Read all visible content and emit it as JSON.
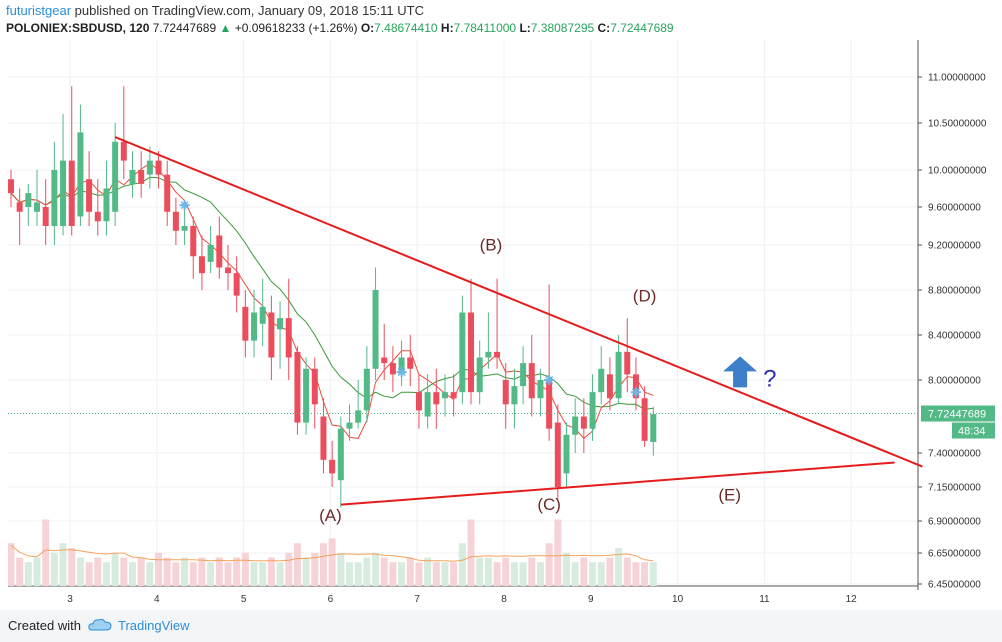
{
  "header": {
    "author": "futuristgear",
    "published": "published on TradingView.com, January 09, 2018 15:11 UTC",
    "symbol": "POLONIEX:SBDUSD, 120",
    "last": "7.72447689",
    "change_arrow": "▲",
    "change": "+0.09618233 (+1.26%)",
    "o_label": "O:",
    "o_value": "7.48674410",
    "h_label": "H:",
    "h_value": "7.78411000",
    "l_label": "L:",
    "l_value": "7.38087295",
    "c_label": "C:",
    "c_value": "7.72447689"
  },
  "footer": {
    "created_with": "Created with",
    "brand": "TradingView"
  },
  "colors": {
    "up": "#53b987",
    "down": "#eb4d5c",
    "trendline": "#e51c1c",
    "ma_fast": "#e84b3c",
    "ma_slow": "#3a9a3a",
    "ma_volume": "#f5a25a",
    "vol_up": "#d7ecdf",
    "vol_down": "#f6d3d6",
    "price_tag": "#53b987",
    "arrow": "#3d7fc9",
    "question": "#2f2fb0",
    "marker": "#6fb5e8"
  },
  "chart_data": {
    "type": "candlestick",
    "xlabel": "",
    "ylabel": "",
    "x_ticks": [
      "3",
      "4",
      "5",
      "6",
      "7",
      "8",
      "9",
      "10",
      "11",
      "12"
    ],
    "x_range": [
      2.28,
      12.82
    ],
    "y_ticks": [
      "11.00000000",
      "10.50000000",
      "10.00000000",
      "9.60000000",
      "9.20000000",
      "8.80000000",
      "8.40000000",
      "8.00000000",
      "7.40000000",
      "7.15000000",
      "6.90000000",
      "6.65000000",
      "6.45000000"
    ],
    "grid": true,
    "current_price": "7.72447689",
    "countdown": "48:34",
    "candles": [
      {
        "x": 2.32,
        "o": 9.9,
        "c": 9.75,
        "h": 10.0,
        "l": 9.6,
        "v": 0.45
      },
      {
        "x": 2.42,
        "o": 9.65,
        "c": 9.55,
        "h": 9.8,
        "l": 9.2,
        "v": 0.3
      },
      {
        "x": 2.52,
        "o": 9.6,
        "c": 9.75,
        "h": 9.85,
        "l": 9.4,
        "v": 0.25
      },
      {
        "x": 2.62,
        "o": 9.55,
        "c": 9.65,
        "h": 10.0,
        "l": 9.4,
        "v": 0.3
      },
      {
        "x": 2.72,
        "o": 9.6,
        "c": 9.4,
        "h": 9.9,
        "l": 9.2,
        "v": 0.7
      },
      {
        "x": 2.82,
        "o": 9.4,
        "c": 10.0,
        "h": 10.3,
        "l": 9.2,
        "v": 0.35
      },
      {
        "x": 2.92,
        "o": 9.4,
        "c": 10.1,
        "h": 10.6,
        "l": 9.3,
        "v": 0.45
      },
      {
        "x": 3.02,
        "o": 10.1,
        "c": 9.4,
        "h": 10.9,
        "l": 9.3,
        "v": 0.4
      },
      {
        "x": 3.12,
        "o": 9.5,
        "c": 10.4,
        "h": 10.7,
        "l": 9.4,
        "v": 0.3
      },
      {
        "x": 3.22,
        "o": 9.9,
        "c": 9.55,
        "h": 10.2,
        "l": 9.4,
        "v": 0.25
      },
      {
        "x": 3.32,
        "o": 9.55,
        "c": 9.45,
        "h": 9.9,
        "l": 9.3,
        "v": 0.3
      },
      {
        "x": 3.42,
        "o": 9.45,
        "c": 9.8,
        "h": 10.1,
        "l": 9.3,
        "v": 0.25
      },
      {
        "x": 3.52,
        "o": 9.55,
        "c": 10.3,
        "h": 10.5,
        "l": 9.4,
        "v": 0.35
      },
      {
        "x": 3.62,
        "o": 10.3,
        "c": 10.1,
        "h": 10.9,
        "l": 9.9,
        "v": 0.3
      },
      {
        "x": 3.72,
        "o": 9.85,
        "c": 10.0,
        "h": 10.2,
        "l": 9.7,
        "v": 0.25
      },
      {
        "x": 3.82,
        "o": 10.0,
        "c": 9.85,
        "h": 10.2,
        "l": 9.7,
        "v": 0.3
      },
      {
        "x": 3.92,
        "o": 9.95,
        "c": 10.1,
        "h": 10.25,
        "l": 9.8,
        "v": 0.25
      },
      {
        "x": 4.02,
        "o": 10.1,
        "c": 9.95,
        "h": 10.2,
        "l": 9.8,
        "v": 0.35
      },
      {
        "x": 4.12,
        "o": 9.95,
        "c": 9.55,
        "h": 10.1,
        "l": 9.4,
        "v": 0.3
      },
      {
        "x": 4.22,
        "o": 9.55,
        "c": 9.35,
        "h": 9.7,
        "l": 9.2,
        "v": 0.25
      },
      {
        "x": 4.32,
        "o": 9.35,
        "c": 9.4,
        "h": 9.6,
        "l": 9.2,
        "v": 0.3
      },
      {
        "x": 4.42,
        "o": 9.4,
        "c": 9.1,
        "h": 9.5,
        "l": 8.9,
        "v": 0.25
      },
      {
        "x": 4.52,
        "o": 9.1,
        "c": 8.95,
        "h": 9.3,
        "l": 8.8,
        "v": 0.3
      },
      {
        "x": 4.62,
        "o": 9.05,
        "c": 9.2,
        "h": 9.4,
        "l": 8.95,
        "v": 0.25
      },
      {
        "x": 4.72,
        "o": 9.3,
        "c": 9.0,
        "h": 9.5,
        "l": 8.9,
        "v": 0.3
      },
      {
        "x": 4.82,
        "o": 9.0,
        "c": 8.95,
        "h": 9.2,
        "l": 8.8,
        "v": 0.25
      },
      {
        "x": 4.92,
        "o": 8.95,
        "c": 8.75,
        "h": 9.1,
        "l": 8.6,
        "v": 0.3
      },
      {
        "x": 5.02,
        "o": 8.65,
        "c": 8.35,
        "h": 8.8,
        "l": 8.2,
        "v": 0.35
      },
      {
        "x": 5.12,
        "o": 8.35,
        "c": 8.6,
        "h": 8.8,
        "l": 8.2,
        "v": 0.25
      },
      {
        "x": 5.22,
        "o": 8.5,
        "c": 8.65,
        "h": 8.9,
        "l": 8.3,
        "v": 0.25
      },
      {
        "x": 5.32,
        "o": 8.6,
        "c": 8.2,
        "h": 8.75,
        "l": 8.0,
        "v": 0.3
      },
      {
        "x": 5.42,
        "o": 8.45,
        "c": 8.55,
        "h": 8.7,
        "l": 8.1,
        "v": 0.25
      },
      {
        "x": 5.52,
        "o": 8.55,
        "c": 8.2,
        "h": 8.9,
        "l": 8.0,
        "v": 0.35
      },
      {
        "x": 5.62,
        "o": 8.25,
        "c": 7.65,
        "h": 8.3,
        "l": 7.55,
        "v": 0.45
      },
      {
        "x": 5.72,
        "o": 7.65,
        "c": 8.1,
        "h": 8.2,
        "l": 7.55,
        "v": 0.3
      },
      {
        "x": 5.82,
        "o": 8.1,
        "c": 7.8,
        "h": 8.2,
        "l": 7.6,
        "v": 0.35
      },
      {
        "x": 5.92,
        "o": 7.7,
        "c": 7.35,
        "h": 7.85,
        "l": 7.25,
        "v": 0.45
      },
      {
        "x": 6.02,
        "o": 7.35,
        "c": 7.25,
        "h": 7.5,
        "l": 7.15,
        "v": 0.5
      },
      {
        "x": 6.12,
        "o": 7.2,
        "c": 7.6,
        "h": 7.7,
        "l": 7.0,
        "v": 0.35
      },
      {
        "x": 6.22,
        "o": 7.6,
        "c": 7.65,
        "h": 7.8,
        "l": 7.5,
        "v": 0.25
      },
      {
        "x": 6.32,
        "o": 7.65,
        "c": 7.75,
        "h": 8.0,
        "l": 7.6,
        "v": 0.25
      },
      {
        "x": 6.42,
        "o": 7.75,
        "c": 8.1,
        "h": 8.3,
        "l": 7.65,
        "v": 0.3
      },
      {
        "x": 6.52,
        "o": 8.1,
        "c": 8.8,
        "h": 9.0,
        "l": 8.0,
        "v": 0.35
      },
      {
        "x": 6.62,
        "o": 8.2,
        "c": 8.15,
        "h": 8.5,
        "l": 8.0,
        "v": 0.3
      },
      {
        "x": 6.72,
        "o": 8.15,
        "c": 8.05,
        "h": 8.3,
        "l": 7.9,
        "v": 0.25
      },
      {
        "x": 6.82,
        "o": 8.05,
        "c": 8.2,
        "h": 8.35,
        "l": 7.95,
        "v": 0.25
      },
      {
        "x": 6.92,
        "o": 8.2,
        "c": 8.1,
        "h": 8.4,
        "l": 7.95,
        "v": 0.3
      },
      {
        "x": 7.02,
        "o": 7.9,
        "c": 7.75,
        "h": 8.05,
        "l": 7.6,
        "v": 0.25
      },
      {
        "x": 7.12,
        "o": 7.7,
        "c": 7.9,
        "h": 8.05,
        "l": 7.6,
        "v": 0.3
      },
      {
        "x": 7.22,
        "o": 7.9,
        "c": 7.8,
        "h": 8.1,
        "l": 7.6,
        "v": 0.25
      },
      {
        "x": 7.32,
        "o": 7.85,
        "c": 7.9,
        "h": 8.05,
        "l": 7.7,
        "v": 0.25
      },
      {
        "x": 7.42,
        "o": 7.9,
        "c": 7.85,
        "h": 8.05,
        "l": 7.7,
        "v": 0.25
      },
      {
        "x": 7.52,
        "o": 7.9,
        "c": 8.6,
        "h": 8.75,
        "l": 7.8,
        "v": 0.45
      },
      {
        "x": 7.62,
        "o": 8.6,
        "c": 7.9,
        "h": 8.9,
        "l": 7.8,
        "v": 0.7
      },
      {
        "x": 7.72,
        "o": 7.9,
        "c": 8.2,
        "h": 8.35,
        "l": 7.8,
        "v": 0.3
      },
      {
        "x": 7.82,
        "o": 8.2,
        "c": 8.25,
        "h": 8.6,
        "l": 8.1,
        "v": 0.3
      },
      {
        "x": 7.92,
        "o": 8.25,
        "c": 8.2,
        "h": 8.9,
        "l": 8.1,
        "v": 0.25
      },
      {
        "x": 8.02,
        "o": 8.0,
        "c": 7.8,
        "h": 8.15,
        "l": 7.6,
        "v": 0.3
      },
      {
        "x": 8.12,
        "o": 7.8,
        "c": 7.95,
        "h": 8.1,
        "l": 7.6,
        "v": 0.25
      },
      {
        "x": 8.22,
        "o": 7.95,
        "c": 8.15,
        "h": 8.3,
        "l": 7.8,
        "v": 0.25
      },
      {
        "x": 8.32,
        "o": 8.15,
        "c": 7.85,
        "h": 8.4,
        "l": 7.7,
        "v": 0.3
      },
      {
        "x": 8.42,
        "o": 7.85,
        "c": 8.0,
        "h": 8.1,
        "l": 7.7,
        "v": 0.25
      },
      {
        "x": 8.52,
        "o": 8.0,
        "c": 7.6,
        "h": 8.85,
        "l": 7.5,
        "v": 0.45
      },
      {
        "x": 8.62,
        "o": 7.65,
        "c": 7.15,
        "h": 7.8,
        "l": 7.05,
        "v": 0.7
      },
      {
        "x": 8.72,
        "o": 7.25,
        "c": 7.55,
        "h": 7.65,
        "l": 7.15,
        "v": 0.35
      },
      {
        "x": 8.82,
        "o": 7.55,
        "c": 7.7,
        "h": 7.85,
        "l": 7.4,
        "v": 0.25
      },
      {
        "x": 8.92,
        "o": 7.7,
        "c": 7.6,
        "h": 7.85,
        "l": 7.4,
        "v": 0.3
      },
      {
        "x": 9.02,
        "o": 7.6,
        "c": 7.9,
        "h": 8.05,
        "l": 7.5,
        "v": 0.25
      },
      {
        "x": 9.12,
        "o": 7.9,
        "c": 8.1,
        "h": 8.3,
        "l": 7.8,
        "v": 0.25
      },
      {
        "x": 9.22,
        "o": 8.05,
        "c": 7.85,
        "h": 8.2,
        "l": 7.75,
        "v": 0.3
      },
      {
        "x": 9.32,
        "o": 7.85,
        "c": 8.25,
        "h": 8.4,
        "l": 7.8,
        "v": 0.4
      },
      {
        "x": 9.42,
        "o": 8.25,
        "c": 8.05,
        "h": 8.55,
        "l": 7.9,
        "v": 0.3
      },
      {
        "x": 9.52,
        "o": 8.05,
        "c": 7.85,
        "h": 8.2,
        "l": 7.75,
        "v": 0.25
      },
      {
        "x": 9.62,
        "o": 7.85,
        "c": 7.5,
        "h": 7.95,
        "l": 7.45,
        "v": 0.25
      },
      {
        "x": 9.72,
        "o": 7.49,
        "c": 7.72,
        "h": 7.78,
        "l": 7.38,
        "v": 0.25
      }
    ],
    "trendlines": [
      {
        "name": "upper",
        "x1": 3.52,
        "y1": 10.35,
        "x2": 12.82,
        "y2": 7.3
      },
      {
        "name": "lower",
        "x1": 6.12,
        "y1": 7.02,
        "x2": 12.5,
        "y2": 7.33
      }
    ],
    "markers": [
      {
        "x": 4.32,
        "y": 9.62
      },
      {
        "x": 6.82,
        "y": 8.07
      },
      {
        "x": 8.52,
        "y": 8.0
      },
      {
        "x": 9.52,
        "y": 7.9
      }
    ],
    "annotations": [
      {
        "label": "(A)",
        "x": 6.0,
        "y": 6.9
      },
      {
        "label": "(B)",
        "x": 7.85,
        "y": 9.15
      },
      {
        "label": "(C)",
        "x": 8.52,
        "y": 6.98
      },
      {
        "label": "(D)",
        "x": 9.62,
        "y": 8.7
      },
      {
        "label": "(E)",
        "x": 10.6,
        "y": 7.05
      }
    ],
    "signal": {
      "arrow": "up",
      "text": "?",
      "x": 10.72,
      "y": 8.05
    }
  }
}
